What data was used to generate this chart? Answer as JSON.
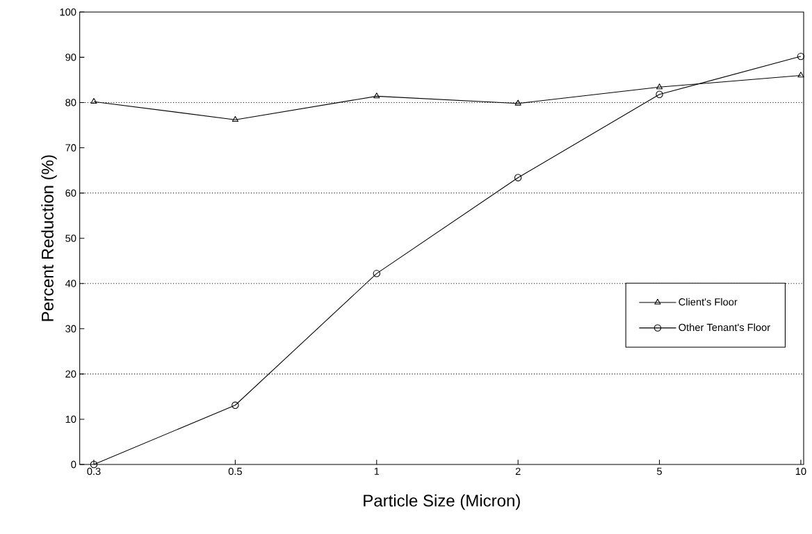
{
  "chart_data": {
    "type": "line",
    "xlabel": "Particle Size (Micron)",
    "ylabel": "Percent Reduction (%)",
    "categories": [
      "0.3",
      "0.5",
      "1",
      "2",
      "5",
      "10"
    ],
    "series": [
      {
        "name": "Client's Floor",
        "color": "#000000",
        "marker": "triangle",
        "values": [
          80.2,
          76.2,
          81.4,
          79.8,
          83.4,
          86
        ]
      },
      {
        "name": "Other Tenant's Floor",
        "color": "#000000",
        "marker": "circle",
        "values": [
          0,
          13.1,
          42.2,
          63.4,
          81.8,
          90.2
        ]
      }
    ],
    "ylim": [
      0,
      100
    ],
    "yticks": [
      0,
      10,
      20,
      30,
      40,
      50,
      60,
      70,
      80,
      90,
      100
    ],
    "ref_lines": [
      {
        "axis": "y",
        "value": 20,
        "line_style": "dotted",
        "color": "#000000"
      },
      {
        "axis": "y",
        "value": 40,
        "line_style": "dotted",
        "color": "#000000"
      },
      {
        "axis": "y",
        "value": 60,
        "line_style": "dotted",
        "color": "#000000"
      },
      {
        "axis": "y",
        "value": 80,
        "line_style": "dotted",
        "color": "#000000"
      }
    ],
    "legend": "right",
    "line_style": "solid"
  }
}
